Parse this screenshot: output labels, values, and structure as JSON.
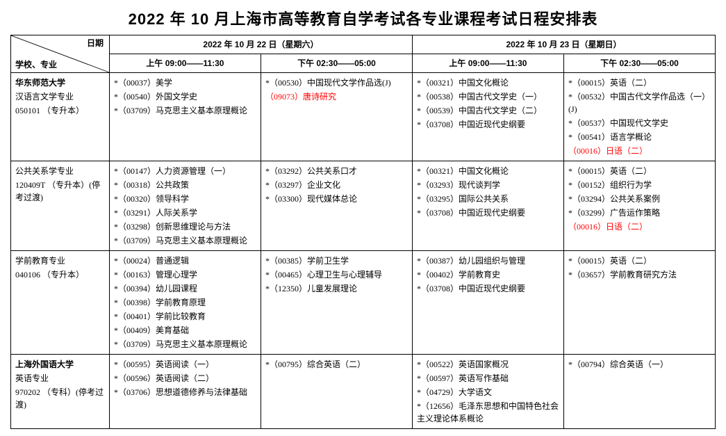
{
  "title": "2022 年 10 月上海市高等教育自学考试各专业课程考试日程安排表",
  "header": {
    "corner_date": "日期",
    "corner_school": "学校、专业",
    "day1": "2022 年 10 月 22 日（星期六）",
    "day2": "2022 年 10 月 23 日（星期日）",
    "slot1": "上午 09:00——11:30",
    "slot2": "下午 02:30——05:00",
    "slot3": "上午 09:00——11:30",
    "slot4": "下午 02:30——05:00"
  },
  "rows": [
    {
      "school_name": "华东师范大学",
      "major_lines": [
        "汉语言文学专业",
        "050101 （专升本）"
      ],
      "slots": [
        [
          {
            "t": "*（00037）美学"
          },
          {
            "t": "*（00540）外国文学史"
          },
          {
            "t": "*（03709）马克思主义基本原理概论"
          }
        ],
        [
          {
            "t": "*（00530）中国现代文学作品选(J)"
          },
          {
            "t": "（09073）唐诗研究",
            "red": true
          }
        ],
        [
          {
            "t": "*（00321）中国文化概论"
          },
          {
            "t": "*（00538）中国古代文学史（一）"
          },
          {
            "t": "*（00539）中国古代文学史（二）"
          },
          {
            "t": "*（03708）中国近现代史纲要"
          }
        ],
        [
          {
            "t": "*（00015）英语（二）"
          },
          {
            "t": "*（00532）中国古代文学作品选（一）(J)"
          },
          {
            "t": "*（00537）中国现代文学史"
          },
          {
            "t": "*（00541）语言学概论"
          },
          {
            "t": "（00016）日语（二）",
            "red": true
          }
        ]
      ]
    },
    {
      "school_name": "",
      "major_lines": [
        "公共关系学专业",
        "120409T （专升本）(停考过渡)"
      ],
      "slots": [
        [
          {
            "t": "*（00147）人力资源管理（一）"
          },
          {
            "t": "*（00318）公共政策"
          },
          {
            "t": "*（00320）领导科学"
          },
          {
            "t": "*（03291）人际关系学"
          },
          {
            "t": "*（03298）创新思维理论与方法"
          },
          {
            "t": "*（03709）马克思主义基本原理概论"
          }
        ],
        [
          {
            "t": "*（03292）公共关系口才"
          },
          {
            "t": "*（03297）企业文化"
          },
          {
            "t": "*（03300）现代媒体总论"
          }
        ],
        [
          {
            "t": "*（00321）中国文化概论"
          },
          {
            "t": "*（03293）现代谈判学"
          },
          {
            "t": "*（03295）国际公共关系"
          },
          {
            "t": "*（03708）中国近现代史纲要"
          }
        ],
        [
          {
            "t": "*（00015）英语（二）"
          },
          {
            "t": "*（00152）组织行为学"
          },
          {
            "t": "*（03294）公共关系案例"
          },
          {
            "t": "*（03299）广告运作策略"
          },
          {
            "t": "（00016）日语（二）",
            "red": true
          }
        ]
      ]
    },
    {
      "school_name": "",
      "major_lines": [
        "学前教育专业",
        "040106 （专升本）"
      ],
      "slots": [
        [
          {
            "t": "*（00024）普通逻辑"
          },
          {
            "t": "*（00163）管理心理学"
          },
          {
            "t": "*（00394）幼儿园课程"
          },
          {
            "t": "*（00398）学前教育原理"
          },
          {
            "t": "*（00401）学前比较教育"
          },
          {
            "t": "*（00409）美育基础"
          },
          {
            "t": "*（03709）马克思主义基本原理概论"
          }
        ],
        [
          {
            "t": "*（00385）学前卫生学"
          },
          {
            "t": "*（00465）心理卫生与心理辅导"
          },
          {
            "t": "*（12350）儿童发展理论"
          }
        ],
        [
          {
            "t": "*（00387）幼儿园组织与管理"
          },
          {
            "t": "*（00402）学前教育史"
          },
          {
            "t": "*（03708）中国近现代史纲要"
          }
        ],
        [
          {
            "t": "*（00015）英语（二）"
          },
          {
            "t": "*（03657）学前教育研究方法"
          }
        ]
      ]
    },
    {
      "school_name": "上海外国语大学",
      "major_lines": [
        "英语专业",
        "970202 （专科）(停考过渡)"
      ],
      "slots": [
        [
          {
            "t": "*（00595）英语阅读（一）"
          },
          {
            "t": "*（00596）英语阅读（二）"
          },
          {
            "t": "*（03706）思想道德修养与法律基础"
          }
        ],
        [
          {
            "t": "*（00795）综合英语（二）"
          }
        ],
        [
          {
            "t": "*（00522）英语国家概况"
          },
          {
            "t": "*（00597）英语写作基础"
          },
          {
            "t": "*（04729）大学语文"
          },
          {
            "t": "*（12656）毛泽东思想和中国特色社会主义理论体系概论"
          }
        ],
        [
          {
            "t": "*（00794）综合英语（一）"
          }
        ]
      ]
    }
  ]
}
